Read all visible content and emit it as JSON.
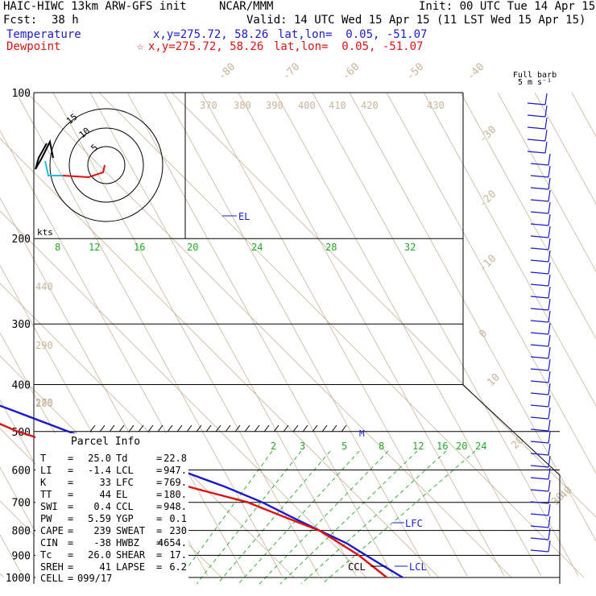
{
  "header": {
    "model": "HAIC-HIWC 13km ARW-GFS init",
    "org": "NCAR/MMM",
    "init": "Init: 00 UTC Tue 14 Apr 15",
    "fcst_label": "Fcst:",
    "fcst_value": "38 h",
    "valid": "Valid: 14 UTC Wed 15 Apr 15 (11 LST Wed 15 Apr 15)",
    "temp_label": "Temperature",
    "temp_xy": "x,y=275.72, 58.26",
    "temp_latlon": "lat,lon=  0.05, -51.07",
    "dew_label": "Dewpoint",
    "dew_star": "☆",
    "dew_xy": "x,y=275.72, 58.26",
    "dew_latlon": "lat,lon=  0.05, -51.07"
  },
  "colors": {
    "temperature": "#1a1acc",
    "dewpoint": "#dd1111",
    "isotherm": "#c8b49a",
    "mixing_ratio": "#22aa22",
    "isobar": "#000000",
    "barb": "#1a1acc"
  },
  "chart_data": {
    "type": "line",
    "title": "",
    "xlabel": "",
    "ylabel": "",
    "pressure_ticks": [
      "100",
      "200",
      "300",
      "400",
      "500",
      "600",
      "700",
      "800",
      "900",
      "1000"
    ],
    "pressure_values": [
      100,
      200,
      300,
      400,
      500,
      600,
      700,
      800,
      900,
      1000
    ],
    "temp_ticks": [
      "-80",
      "-70",
      "-60",
      "-50",
      "-40",
      "-30",
      "-20",
      "-10",
      "0",
      "10",
      "20",
      "30",
      "40"
    ],
    "theta_ticks": [
      "370",
      "380",
      "390",
      "400",
      "410",
      "420",
      "430",
      "440",
      "290",
      "280",
      "270"
    ],
    "mixing_upper": [
      "8",
      "12",
      "16",
      "20",
      "24",
      "28",
      "32"
    ],
    "mixing_lower": [
      "2",
      "3",
      "5",
      "8",
      "12",
      "16",
      "20",
      "24"
    ],
    "series": [
      {
        "name": "Temperature",
        "color": "#1a1acc",
        "x": [
          -73,
          -70,
          -62,
          -57,
          -53,
          -48,
          -42,
          -37,
          -30,
          -24,
          -18,
          -12,
          -6,
          -1,
          4,
          9,
          13,
          16,
          18,
          20,
          22,
          23,
          24,
          25
        ],
        "y": [
          100,
          125,
          150,
          175,
          200,
          225,
          250,
          275,
          300,
          330,
          360,
          400,
          450,
          500,
          550,
          600,
          650,
          700,
          750,
          800,
          850,
          900,
          950,
          1000
        ]
      },
      {
        "name": "Dewpoint",
        "color": "#dd1111",
        "x": [
          -80,
          -83,
          -86,
          -76,
          -64,
          -55,
          -50,
          -40,
          -30,
          -24,
          -18,
          -16,
          -12,
          -8,
          -2,
          5,
          8,
          14,
          17,
          20,
          22,
          22.8
        ],
        "y": [
          100,
          130,
          150,
          175,
          200,
          225,
          250,
          275,
          300,
          330,
          360,
          400,
          450,
          500,
          550,
          600,
          650,
          700,
          750,
          800,
          900,
          1000
        ]
      }
    ]
  },
  "labels": {
    "el": "EL",
    "lfc": "LFC",
    "lcl": "LCL",
    "ccl": "CCL",
    "m": "M",
    "kts": "kts",
    "full_barb_1": "Full barb",
    "full_barb_2": "5 m s⁻¹"
  },
  "hodograph": {
    "rings": [
      "5",
      "10",
      "15"
    ]
  },
  "parcel": {
    "title": "Parcel Info",
    "rows": [
      {
        "l1": "T",
        "v1": "25.0",
        "l2": "Td",
        "v2": "22.8"
      },
      {
        "l1": "LI",
        "v1": "-1.4",
        "l2": "LCL",
        "v2": "947."
      },
      {
        "l1": "K",
        "v1": "33",
        "l2": "LFC",
        "v2": "769."
      },
      {
        "l1": "TT",
        "v1": "44",
        "l2": "EL",
        "v2": "180."
      },
      {
        "l1": "SWI",
        "v1": "0.4",
        "l2": "CCL",
        "v2": "948."
      },
      {
        "l1": "PW",
        "v1": "5.59",
        "l2": "YGP",
        "v2": "0.1"
      },
      {
        "l1": "CAPE",
        "v1": "239",
        "l2": "SWEAT",
        "v2": "230"
      },
      {
        "l1": "CIN",
        "v1": "-38",
        "l2": "HWBZ",
        "v2": "4654."
      },
      {
        "l1": "Tc",
        "v1": "26.0",
        "l2": "SHEAR",
        "v2": "17."
      },
      {
        "l1": "SREH",
        "v1": "41",
        "l2": "LAPSE",
        "v2": "6.2"
      }
    ],
    "cell_label": "CELL",
    "cell_value": "099/17"
  }
}
